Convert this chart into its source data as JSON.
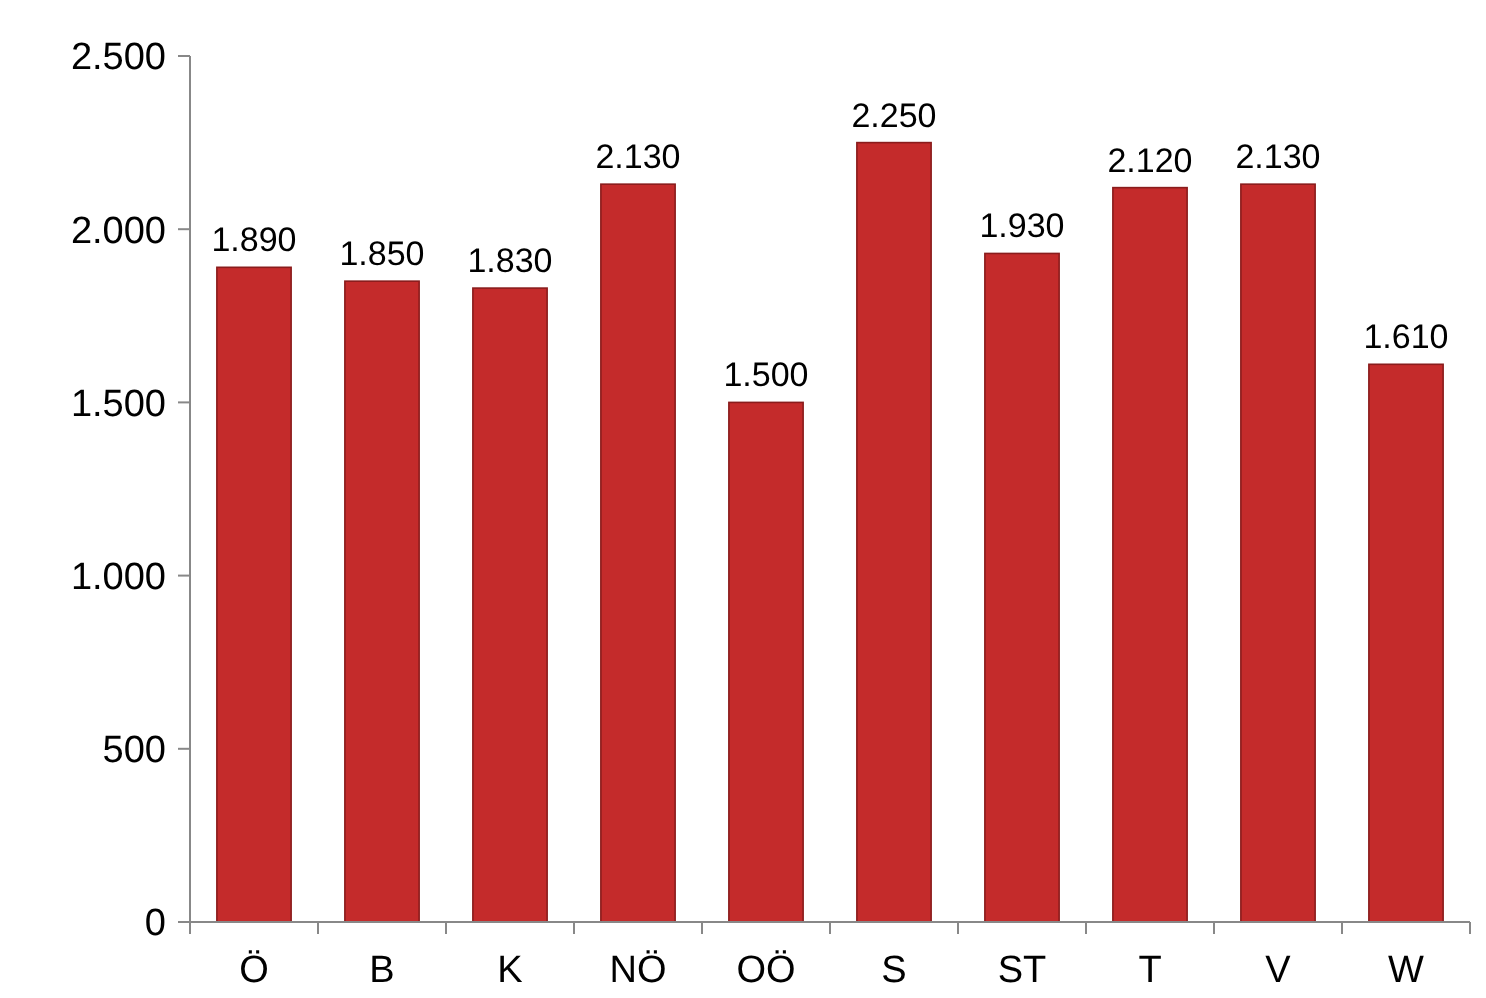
{
  "chart_data": {
    "type": "bar",
    "categories": [
      "Ö",
      "B",
      "K",
      "NÖ",
      "OÖ",
      "S",
      "ST",
      "T",
      "V",
      "W"
    ],
    "values": [
      1890,
      1850,
      1830,
      2130,
      1500,
      2250,
      1930,
      2120,
      2130,
      1610
    ],
    "value_labels": [
      "1.890",
      "1.850",
      "1.830",
      "2.130",
      "1.500",
      "2.250",
      "1.930",
      "2.120",
      "2.130",
      "1.610"
    ],
    "color": "#c42b2b",
    "ylim": [
      0,
      2500
    ],
    "yticks": [
      0,
      {
        "value": 500,
        "label": "500"
      },
      {
        "value": 1000,
        "label": "1.000"
      },
      {
        "value": 1500,
        "label": "1.500"
      },
      {
        "value": 2000,
        "label": "2.000"
      },
      {
        "value": 2500,
        "label": "2.500"
      }
    ],
    "grid": false
  }
}
